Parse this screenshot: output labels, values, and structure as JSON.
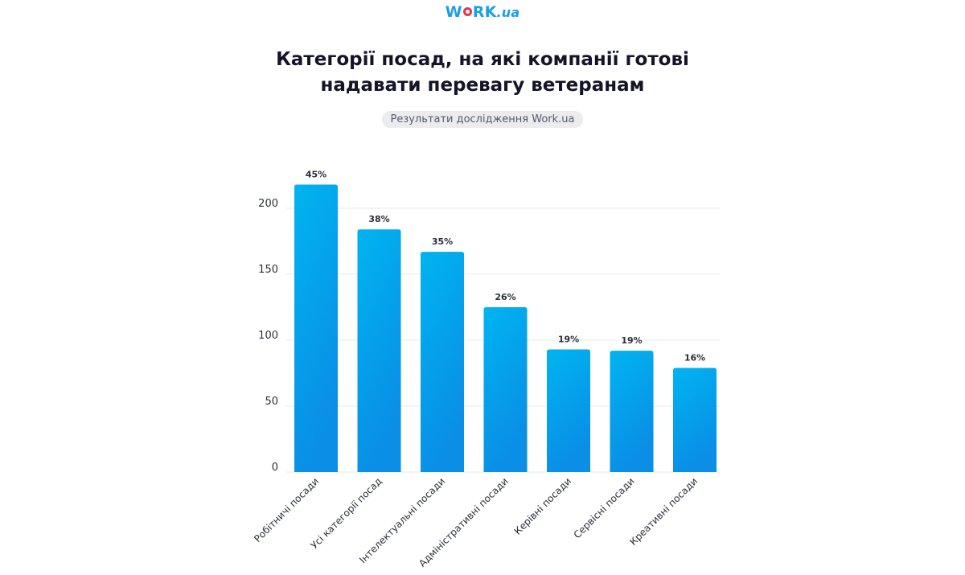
{
  "logo": {
    "main": "WORK",
    "suffix": ".ua"
  },
  "title_line1": "Категорії посад, на які компанії готові",
  "title_line2": "надавати перевагу ветеранам",
  "subtitle": "Результати дослідження Work.ua",
  "colors": {
    "bar_top": "#00b4f0",
    "bar_bottom": "#0a8ee6",
    "grid": "#e8e8ec",
    "accent_red": "#e8334a"
  },
  "chart_data": {
    "type": "bar",
    "title": "Категорії посад, на які компанії готові надавати перевагу ветеранам",
    "categories": [
      "Робітничі посади",
      "Усі категорії посад",
      "Інтелектуальні посади",
      "Адміністративні посади",
      "Керівні посади",
      "Сервісні посади",
      "Креативні посади"
    ],
    "values": [
      218,
      184,
      167,
      125,
      93,
      92,
      79
    ],
    "data_labels": [
      "45%",
      "38%",
      "35%",
      "26%",
      "19%",
      "19%",
      "16%"
    ],
    "yticks": [
      0,
      50,
      100,
      150,
      200
    ],
    "ylim": [
      0,
      220
    ],
    "grid": true,
    "xlabel": "",
    "ylabel": ""
  }
}
